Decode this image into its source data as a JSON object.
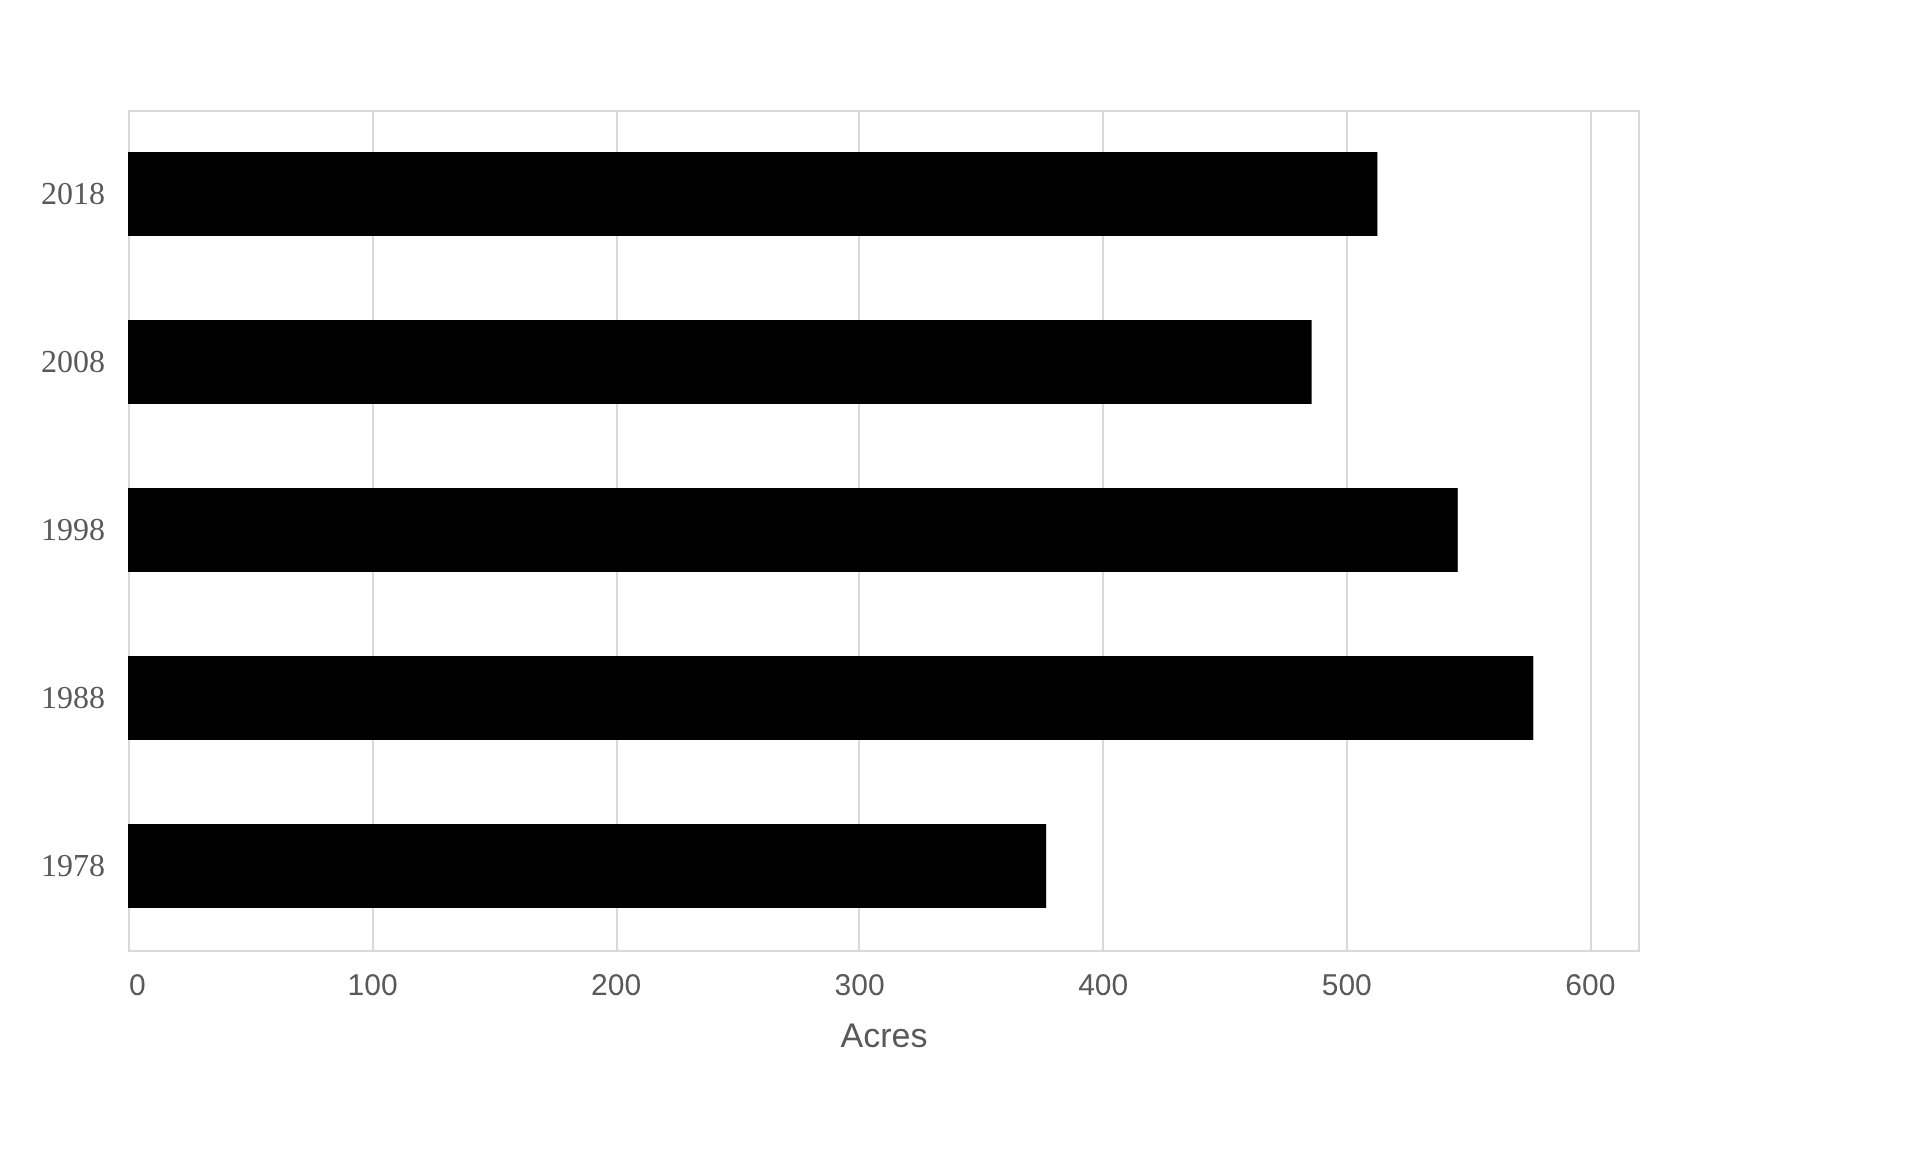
{
  "chart_data": {
    "type": "bar",
    "orientation": "horizontal",
    "xlabel": "Acres",
    "categories": [
      "2018",
      "2008",
      "1998",
      "1988",
      "1978"
    ],
    "values": [
      513,
      486,
      546,
      577,
      377
    ],
    "color": "#000000",
    "xlim": [
      0,
      620
    ],
    "xticks": [
      0,
      100,
      200,
      300,
      400,
      500,
      600
    ],
    "grid": "x"
  }
}
